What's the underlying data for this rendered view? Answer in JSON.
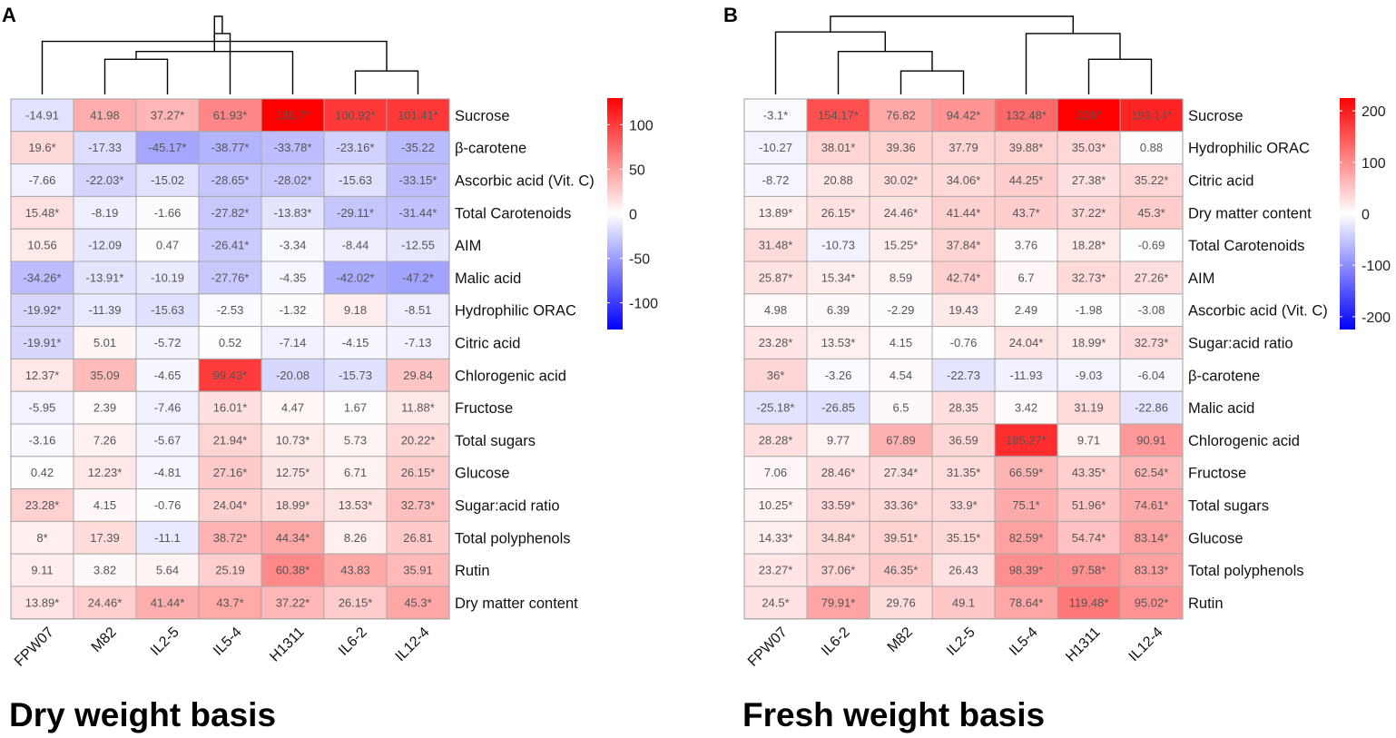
{
  "chart_data": [
    {
      "type": "heatmap",
      "panel_label": "A",
      "caption": "Dry weight basis",
      "columns": [
        "FPW07",
        "M82",
        "IL2-5",
        "IL5-4",
        "H1311",
        "IL6-2",
        "IL12-4"
      ],
      "rows": [
        "Sucrose",
        "β-carotene",
        "Ascorbic acid (Vit. C)",
        "Total Carotenoids",
        "AIM",
        "Malic acid",
        "Hydrophilic ORAC",
        "Citric acid",
        "Chlorogenic acid",
        "Fructose",
        "Total sugars",
        "Glucose",
        "Sugar:acid ratio",
        "Total polyphenols",
        "Rutin",
        "Dry matter content"
      ],
      "values": [
        [
          -14.91,
          41.98,
          37.27,
          61.93,
          136.7,
          100.92,
          101.41
        ],
        [
          19.6,
          -17.33,
          -45.17,
          -38.77,
          -33.78,
          -23.16,
          -35.22
        ],
        [
          -7.66,
          -22.03,
          -15.02,
          -28.65,
          -28.02,
          -15.63,
          -33.15
        ],
        [
          15.48,
          -8.19,
          -1.66,
          -27.82,
          -13.83,
          -29.11,
          -31.44
        ],
        [
          10.56,
          -12.09,
          0.47,
          -26.41,
          -3.34,
          -8.44,
          -12.55
        ],
        [
          -34.26,
          -13.91,
          -10.19,
          -27.76,
          -4.35,
          -42.02,
          -47.2
        ],
        [
          -19.92,
          -11.39,
          -15.63,
          -2.53,
          -1.32,
          9.18,
          -8.51
        ],
        [
          -19.91,
          5.01,
          -5.72,
          0.52,
          -7.14,
          -4.15,
          -7.13
        ],
        [
          12.37,
          35.09,
          -4.65,
          99.43,
          -20.08,
          -15.73,
          29.84
        ],
        [
          -5.95,
          2.39,
          -7.46,
          16.01,
          4.47,
          1.67,
          11.88
        ],
        [
          -3.16,
          7.26,
          -5.67,
          21.94,
          10.73,
          5.73,
          20.22
        ],
        [
          0.42,
          12.23,
          -4.81,
          27.16,
          12.75,
          6.71,
          26.15
        ],
        [
          23.28,
          4.15,
          -0.76,
          24.04,
          18.99,
          13.53,
          32.73
        ],
        [
          8,
          17.39,
          -11.1,
          38.72,
          44.34,
          8.26,
          26.81
        ],
        [
          9.11,
          3.82,
          5.64,
          25.19,
          60.38,
          43.83,
          35.91
        ],
        [
          13.89,
          24.46,
          41.44,
          43.7,
          37.22,
          26.15,
          45.3
        ]
      ],
      "labels": [
        [
          "-14.91",
          "41.98",
          "37.27*",
          "61.93*",
          "136.7*",
          "100.92*",
          "101.41*"
        ],
        [
          "19.6*",
          "-17.33",
          "-45.17*",
          "-38.77*",
          "-33.78*",
          "-23.16*",
          "-35.22"
        ],
        [
          "-7.66",
          "-22.03*",
          "-15.02",
          "-28.65*",
          "-28.02*",
          "-15.63",
          "-33.15*"
        ],
        [
          "15.48*",
          "-8.19",
          "-1.66",
          "-27.82*",
          "-13.83*",
          "-29.11*",
          "-31.44*"
        ],
        [
          "10.56",
          "-12.09",
          "0.47",
          "-26.41*",
          "-3.34",
          "-8.44",
          "-12.55"
        ],
        [
          "-34.26*",
          "-13.91*",
          "-10.19",
          "-27.76*",
          "-4.35",
          "-42.02*",
          "-47.2*"
        ],
        [
          "-19.92*",
          "-11.39",
          "-15.63",
          "-2.53",
          "-1.32",
          "9.18",
          "-8.51"
        ],
        [
          "-19.91*",
          "5.01",
          "-5.72",
          "0.52",
          "-7.14",
          "-4.15",
          "-7.13"
        ],
        [
          "12.37*",
          "35.09",
          "-4.65",
          "99.43*",
          "-20.08",
          "-15.73",
          "29.84"
        ],
        [
          "-5.95",
          "2.39",
          "-7.46",
          "16.01*",
          "4.47",
          "1.67",
          "11.88*"
        ],
        [
          "-3.16",
          "7.26",
          "-5.67",
          "21.94*",
          "10.73*",
          "5.73",
          "20.22*"
        ],
        [
          "0.42",
          "12.23*",
          "-4.81",
          "27.16*",
          "12.75*",
          "6.71",
          "26.15*"
        ],
        [
          "23.28*",
          "4.15",
          "-0.76",
          "24.04*",
          "18.99*",
          "13.53*",
          "32.73*"
        ],
        [
          "8*",
          "17.39",
          "-11.1",
          "38.72*",
          "44.34*",
          "8.26",
          "26.81"
        ],
        [
          "9.11",
          "3.82",
          "5.64",
          "25.19",
          "60.38*",
          "43.83",
          "35.91"
        ],
        [
          "13.89*",
          "24.46*",
          "41.44*",
          "43.7*",
          "37.22*",
          "26.15*",
          "45.3*"
        ]
      ],
      "color_scale": {
        "min": -130,
        "max": 130,
        "low": "#0000ff",
        "mid": "#ffffff",
        "high": "#ff0000"
      },
      "legend_ticks": [
        100,
        50,
        0,
        -50,
        -100
      ],
      "dendrogram": {
        "leaf_order": [
          "FPW07",
          "M82",
          "IL2-5",
          "IL5-4",
          "H1311",
          "IL6-2",
          "IL12-4"
        ],
        "merges": [
          [
            1,
            2,
            0.45
          ],
          [
            5,
            6,
            0.3
          ],
          [
            4,
            7,
            0.55
          ],
          [
            0,
            8,
            0.68
          ],
          [
            3,
            9,
            0.78
          ],
          [
            10,
            11,
            1.0
          ]
        ]
      }
    },
    {
      "type": "heatmap",
      "panel_label": "B",
      "caption": "Fresh weight basis",
      "columns": [
        "FPW07",
        "IL6-2",
        "M82",
        "IL2-5",
        "IL5-4",
        "H1311",
        "IL12-4"
      ],
      "rows": [
        "Sucrose",
        "Hydrophilic ORAC",
        "Citric acid",
        "Dry matter content",
        "Total Carotenoids",
        "AIM",
        "Ascorbic acid (Vit. C)",
        "Sugar:acid ratio",
        "β-carotene",
        "Malic acid",
        "Chlorogenic acid",
        "Fructose",
        "Total sugars",
        "Glucose",
        "Total polyphenols",
        "Rutin"
      ],
      "values": [
        [
          -3.1,
          154.17,
          76.82,
          94.42,
          132.48,
          226,
          193.14
        ],
        [
          -10.27,
          38.01,
          39.36,
          37.79,
          39.88,
          35.03,
          0.88
        ],
        [
          -8.72,
          20.88,
          30.02,
          34.06,
          44.25,
          27.38,
          35.22
        ],
        [
          13.89,
          26.15,
          24.46,
          41.44,
          43.7,
          37.22,
          45.3
        ],
        [
          31.48,
          -10.73,
          15.25,
          37.84,
          3.76,
          18.28,
          -0.69
        ],
        [
          25.87,
          15.34,
          8.59,
          42.74,
          6.7,
          32.73,
          27.26
        ],
        [
          4.98,
          6.39,
          -2.29,
          19.43,
          2.49,
          -1.98,
          -3.08
        ],
        [
          23.28,
          13.53,
          4.15,
          -0.76,
          24.04,
          18.99,
          32.73
        ],
        [
          36,
          -3.26,
          4.54,
          -22.73,
          -11.93,
          -9.03,
          -6.04
        ],
        [
          -25.18,
          -26.85,
          6.5,
          28.35,
          3.42,
          31.19,
          -22.86
        ],
        [
          28.28,
          9.77,
          67.89,
          36.59,
          185.27,
          9.71,
          90.91
        ],
        [
          7.06,
          28.46,
          27.34,
          31.35,
          66.59,
          43.35,
          62.54
        ],
        [
          10.25,
          33.59,
          33.36,
          33.9,
          75.1,
          51.96,
          74.61
        ],
        [
          14.33,
          34.84,
          39.51,
          35.15,
          82.59,
          54.74,
          83.14
        ],
        [
          23.27,
          37.06,
          46.35,
          26.43,
          98.39,
          97.58,
          83.13
        ],
        [
          24.5,
          79.91,
          29.76,
          49.1,
          78.64,
          119.48,
          95.02
        ]
      ],
      "labels": [
        [
          "-3.1*",
          "154.17*",
          "76.82",
          "94.42*",
          "132.48*",
          "226*",
          "193.14*"
        ],
        [
          "-10.27",
          "38.01*",
          "39.36",
          "37.79",
          "39.88*",
          "35.03*",
          "0.88"
        ],
        [
          "-8.72",
          "20.88",
          "30.02*",
          "34.06*",
          "44.25*",
          "27.38*",
          "35.22*"
        ],
        [
          "13.89*",
          "26.15*",
          "24.46*",
          "41.44*",
          "43.7*",
          "37.22*",
          "45.3*"
        ],
        [
          "31.48*",
          "-10.73",
          "15.25*",
          "37.84*",
          "3.76",
          "18.28*",
          "-0.69"
        ],
        [
          "25.87*",
          "15.34*",
          "8.59",
          "42.74*",
          "6.7",
          "32.73*",
          "27.26*"
        ],
        [
          "4.98",
          "6.39",
          "-2.29",
          "19.43",
          "2.49",
          "-1.98",
          "-3.08"
        ],
        [
          "23.28*",
          "13.53*",
          "4.15",
          "-0.76",
          "24.04*",
          "18.99*",
          "32.73*"
        ],
        [
          "36*",
          "-3.26",
          "4.54",
          "-22.73",
          "-11.93",
          "-9.03",
          "-6.04"
        ],
        [
          "-25.18*",
          "-26.85",
          "6.5",
          "28.35",
          "3.42",
          "31.19",
          "-22.86"
        ],
        [
          "28.28*",
          "9.77",
          "67.89",
          "36.59",
          "185.27*",
          "9.71",
          "90.91"
        ],
        [
          "7.06",
          "28.46*",
          "27.34*",
          "31.35*",
          "66.59*",
          "43.35*",
          "62.54*"
        ],
        [
          "10.25*",
          "33.59*",
          "33.36*",
          "33.9*",
          "75.1*",
          "51.96*",
          "74.61*"
        ],
        [
          "14.33*",
          "34.84*",
          "39.51*",
          "35.15*",
          "82.59*",
          "54.74*",
          "83.14*"
        ],
        [
          "23.27*",
          "37.06*",
          "46.35*",
          "26.43",
          "98.39*",
          "97.58*",
          "83.13*"
        ],
        [
          "24.5*",
          "79.91*",
          "29.76",
          "49.1",
          "78.64*",
          "119.48*",
          "95.02*"
        ]
      ],
      "color_scale": {
        "min": -225,
        "max": 225,
        "low": "#0000ff",
        "mid": "#ffffff",
        "high": "#ff0000"
      },
      "legend_ticks": [
        200,
        100,
        0,
        -100,
        -200
      ],
      "dendrogram": {
        "leaf_order": [
          "FPW07",
          "IL6-2",
          "M82",
          "IL2-5",
          "IL5-4",
          "H1311",
          "IL12-4"
        ],
        "merges": [
          [
            2,
            3,
            0.3
          ],
          [
            5,
            6,
            0.45
          ],
          [
            1,
            7,
            0.55
          ],
          [
            4,
            8,
            0.78
          ],
          [
            0,
            9,
            0.8
          ],
          [
            10,
            11,
            1.0
          ]
        ]
      }
    }
  ]
}
